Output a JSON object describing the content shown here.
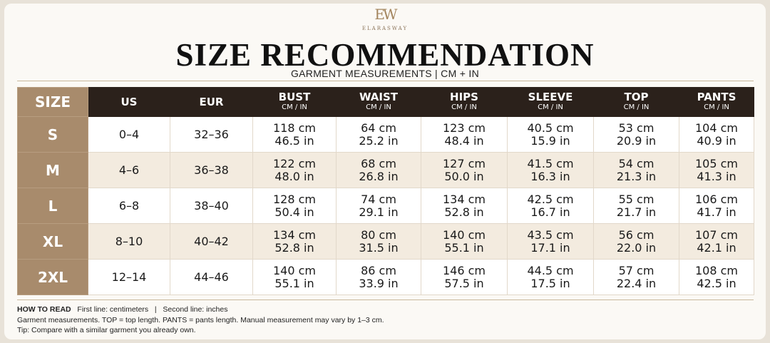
{
  "header": {
    "monogram": "EW",
    "brand": "ELARASWAY",
    "title": "SIZE RECOMMENDATION",
    "subtitle": "GARMENT MEASUREMENTS | CM + IN"
  },
  "table": {
    "columns": [
      {
        "label": "SIZE"
      },
      {
        "label": "US"
      },
      {
        "label": "EUR"
      },
      {
        "label": "BUST",
        "unit": "CM / IN"
      },
      {
        "label": "WAIST",
        "unit": "CM / IN"
      },
      {
        "label": "HIPS",
        "unit": "CM / IN"
      },
      {
        "label": "SLEEVE",
        "unit": "CM / IN"
      },
      {
        "label": "TOP",
        "unit": "CM / IN"
      },
      {
        "label": "PANTS",
        "unit": "CM / IN"
      }
    ],
    "rows": [
      [
        "S",
        "0–4",
        "32–36",
        {
          "cm": "118 cm",
          "in": "46.5 in"
        },
        {
          "cm": "64 cm",
          "in": "25.2 in"
        },
        {
          "cm": "123 cm",
          "in": "48.4 in"
        },
        {
          "cm": "40.5 cm",
          "in": "15.9 in"
        },
        {
          "cm": "53 cm",
          "in": "20.9 in"
        },
        {
          "cm": "104 cm",
          "in": "40.9 in"
        }
      ],
      [
        "M",
        "4–6",
        "36–38",
        {
          "cm": "122 cm",
          "in": "48.0 in"
        },
        {
          "cm": "68 cm",
          "in": "26.8 in"
        },
        {
          "cm": "127 cm",
          "in": "50.0 in"
        },
        {
          "cm": "41.5 cm",
          "in": "16.3 in"
        },
        {
          "cm": "54 cm",
          "in": "21.3 in"
        },
        {
          "cm": "105 cm",
          "in": "41.3 in"
        }
      ],
      [
        "L",
        "6–8",
        "38–40",
        {
          "cm": "128 cm",
          "in": "50.4 in"
        },
        {
          "cm": "74 cm",
          "in": "29.1 in"
        },
        {
          "cm": "134 cm",
          "in": "52.8 in"
        },
        {
          "cm": "42.5 cm",
          "in": "16.7 in"
        },
        {
          "cm": "55 cm",
          "in": "21.7 in"
        },
        {
          "cm": "106 cm",
          "in": "41.7 in"
        }
      ],
      [
        "XL",
        "8–10",
        "40–42",
        {
          "cm": "134 cm",
          "in": "52.8 in"
        },
        {
          "cm": "80 cm",
          "in": "31.5 in"
        },
        {
          "cm": "140 cm",
          "in": "55.1 in"
        },
        {
          "cm": "43.5 cm",
          "in": "17.1 in"
        },
        {
          "cm": "56 cm",
          "in": "22.0 in"
        },
        {
          "cm": "107 cm",
          "in": "42.1 in"
        }
      ],
      [
        "2XL",
        "12–14",
        "44–46",
        {
          "cm": "140 cm",
          "in": "55.1 in"
        },
        {
          "cm": "86 cm",
          "in": "33.9 in"
        },
        {
          "cm": "146 cm",
          "in": "57.5 in"
        },
        {
          "cm": "44.5 cm",
          "in": "17.5 in"
        },
        {
          "cm": "57 cm",
          "in": "22.4 in"
        },
        {
          "cm": "108 cm",
          "in": "42.5 in"
        }
      ]
    ]
  },
  "notes": [
    {
      "label": "HOW TO READ",
      "text": "First line: centimeters   |   Second line: inches"
    },
    {
      "text": "Garment measurements. TOP = top length. PANTS = pants length. Manual measurement may vary by 1–3 cm."
    },
    {
      "text": "Tip: Compare with a similar garment you already own."
    }
  ]
}
